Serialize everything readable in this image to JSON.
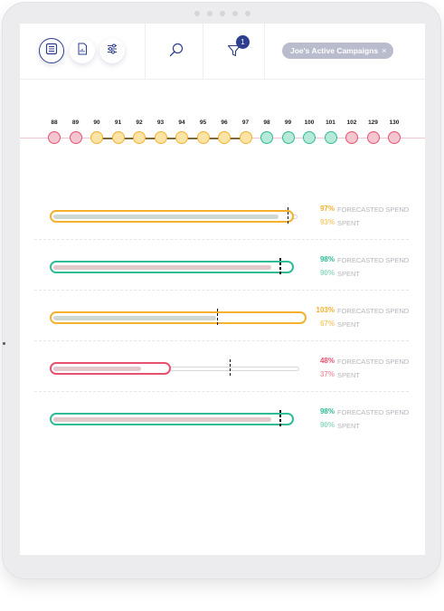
{
  "header": {
    "badge_count": "1",
    "filter_chip": {
      "label": "Joe's Active Campaigns",
      "close": "×"
    },
    "icons": [
      "list-view-icon",
      "report-icon",
      "sliders-icon",
      "search-icon",
      "filter-icon"
    ]
  },
  "timeline": {
    "labels": [
      "88",
      "89",
      "90",
      "91",
      "92",
      "93",
      "94",
      "95",
      "96",
      "97",
      "98",
      "99",
      "100",
      "101",
      "102",
      "129",
      "130"
    ],
    "statuses": [
      "red",
      "red",
      "yellow",
      "yellow",
      "yellow",
      "yellow",
      "yellow",
      "yellow",
      "yellow",
      "yellow",
      "green",
      "green",
      "green",
      "green",
      "red",
      "red",
      "red"
    ]
  },
  "colors": {
    "red": "#e8526f",
    "red_fill": "#f4c6cf",
    "yellow": "#f5b02d",
    "yellow_fill": "#fbe4a6",
    "green": "#2fbb95",
    "green_fill": "#b7e9d8",
    "bar_fill": "#e3c9cc",
    "bar_fill_soft": "#f0dcdf",
    "marker": "#111111"
  },
  "labels": {
    "forecast": "FORECASTED SPEND",
    "spent": "SPENT"
  },
  "campaigns": [
    {
      "color": "yellow",
      "forecast_pct": "97%",
      "spent_pct": "93%",
      "forecast": 97,
      "spent": 93
    },
    {
      "color": "green",
      "forecast_pct": "98%",
      "spent_pct": "90%",
      "forecast": 98,
      "spent": 90
    },
    {
      "color": "yellow",
      "forecast_pct": "103%",
      "spent_pct": "67%",
      "forecast": 103,
      "spent": 67
    },
    {
      "color": "red",
      "forecast_pct": "48%",
      "spent_pct": "37%",
      "forecast": 48,
      "spent": 37
    },
    {
      "color": "green",
      "forecast_pct": "98%",
      "spent_pct": "90%",
      "forecast": 98,
      "spent": 90
    }
  ]
}
